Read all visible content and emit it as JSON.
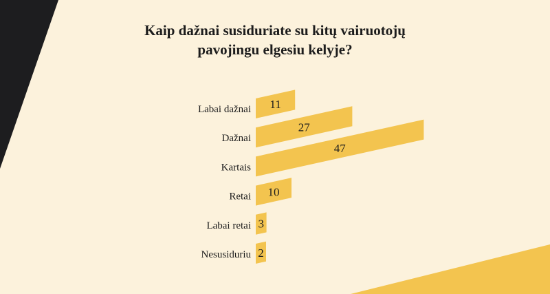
{
  "chart_data": {
    "type": "bar",
    "orientation": "horizontal",
    "title": "Kaip dažnai susiduriate su kitų vairuotojų pavojingu elgesiu kelyje?",
    "title_lines": [
      "Kaip dažnai susiduriate su kitų vairuotojų",
      "pavojingu elgesiu kelyje?"
    ],
    "categories": [
      "Labai dažnai",
      "Dažnai",
      "Kartais",
      "Retai",
      "Labai retai",
      "Nesusiduriu"
    ],
    "values": [
      11,
      27,
      47,
      10,
      3,
      2
    ],
    "xlabel": "",
    "ylabel": "",
    "grid": false,
    "colors": {
      "bar": "#f3c44f",
      "background": "#fcf2dc",
      "dark": "#1d1d1f",
      "text": "#1c1c1c"
    }
  }
}
